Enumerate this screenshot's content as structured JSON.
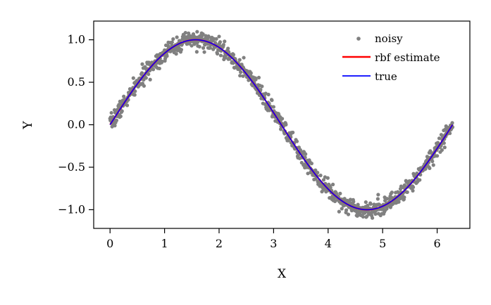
{
  "chart_data": {
    "type": "scatter",
    "xlabel": "X",
    "ylabel": "Y",
    "xlim": [
      -0.3,
      6.6
    ],
    "ylim": [
      -1.22,
      1.22
    ],
    "x_ticks": [
      0,
      1,
      2,
      3,
      4,
      5,
      6
    ],
    "y_ticks": [
      -1.0,
      -0.5,
      0.0,
      0.5,
      1.0
    ],
    "x_tick_labels": [
      "0",
      "1",
      "2",
      "3",
      "4",
      "5",
      "6"
    ],
    "y_tick_labels": [
      "−1.0",
      "−0.5",
      "0.0",
      "0.5",
      "1.0"
    ],
    "grid": false,
    "legend_position": "top-right",
    "x_range": [
      0,
      6.2832
    ],
    "noise_std": 0.05,
    "n_points": 1000,
    "series": [
      {
        "name": "noisy",
        "kind": "scatter",
        "color": "#808080",
        "function": "sin(x) + noise"
      },
      {
        "name": "rbf estimate",
        "kind": "line",
        "color": "#ff0000",
        "function": "sin(x)"
      },
      {
        "name": "true",
        "kind": "line",
        "color": "#0000ff",
        "function": "sin(x)"
      }
    ],
    "legend": [
      "noisy",
      "rbf estimate",
      "true"
    ]
  }
}
